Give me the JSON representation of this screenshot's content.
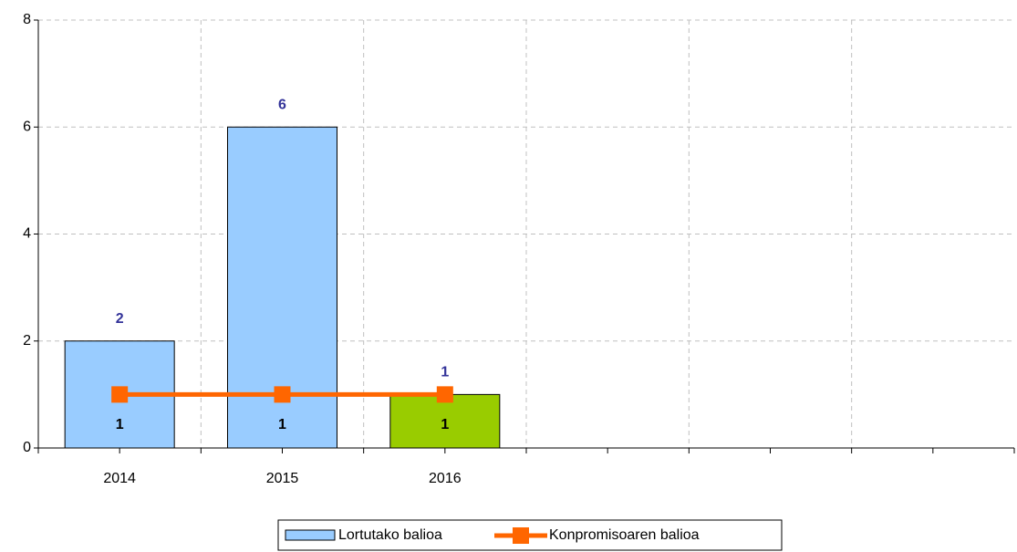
{
  "chart_data": {
    "type": "bar",
    "categories": [
      "2014",
      "2015",
      "2016",
      null,
      null,
      null
    ],
    "series": [
      {
        "name": "Lortutako balioa",
        "type": "bar",
        "color": "#99ccff",
        "colors": [
          "#99ccff",
          "#99ccff",
          "#99cc00",
          null,
          null,
          null
        ],
        "values": [
          2,
          6,
          1,
          null,
          null,
          null
        ]
      },
      {
        "name": "Konpromisoaren balioa",
        "type": "line",
        "color": "#ff6600",
        "values": [
          1,
          1,
          1,
          null,
          null,
          null
        ]
      }
    ],
    "ylim": [
      0,
      8
    ],
    "yticks": [
      0,
      2,
      4,
      6,
      8
    ],
    "grid": true,
    "legend": "bottom"
  }
}
